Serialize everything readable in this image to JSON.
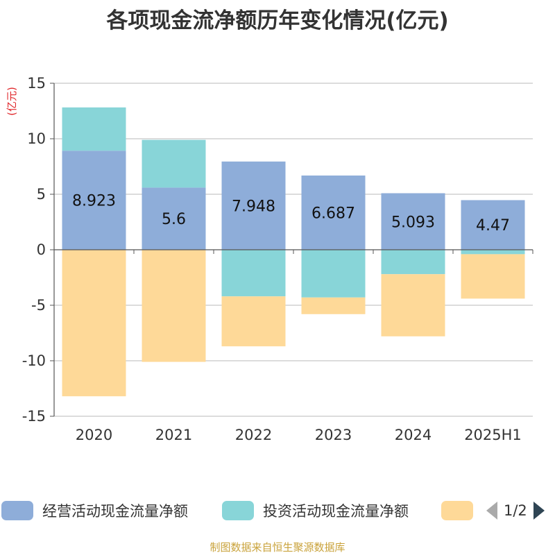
{
  "chart_data": {
    "type": "bar",
    "stacked": true,
    "title": "各项现金流净额历年变化情况(亿元)",
    "ylabel": "(亿元)",
    "categories": [
      "2020",
      "2021",
      "2022",
      "2023",
      "2024",
      "2025H1"
    ],
    "ylim": [
      -15,
      15
    ],
    "yticks": [
      15,
      10,
      5,
      0,
      -5,
      -10,
      -15
    ],
    "grid": true,
    "series": [
      {
        "name": "经营活动现金流量净额",
        "color": "#8eadd9",
        "values": [
          8.923,
          5.6,
          7.948,
          6.687,
          5.093,
          4.47
        ],
        "labels": [
          "8.923",
          "5.6",
          "7.948",
          "6.687",
          "5.093",
          "4.47"
        ]
      },
      {
        "name": "投资活动现金流量净额",
        "color": "#88d5d8",
        "values": [
          3.9,
          4.3,
          -4.2,
          -4.3,
          -2.2,
          -0.4
        ]
      },
      {
        "name": "",
        "color": "#fed998",
        "values": [
          -13.2,
          -10.1,
          -4.5,
          -1.5,
          -5.6,
          -4.0
        ]
      }
    ],
    "legend": {
      "position": "bottom",
      "page": "1/2"
    }
  },
  "source": "制图数据来自恒生聚源数据库"
}
